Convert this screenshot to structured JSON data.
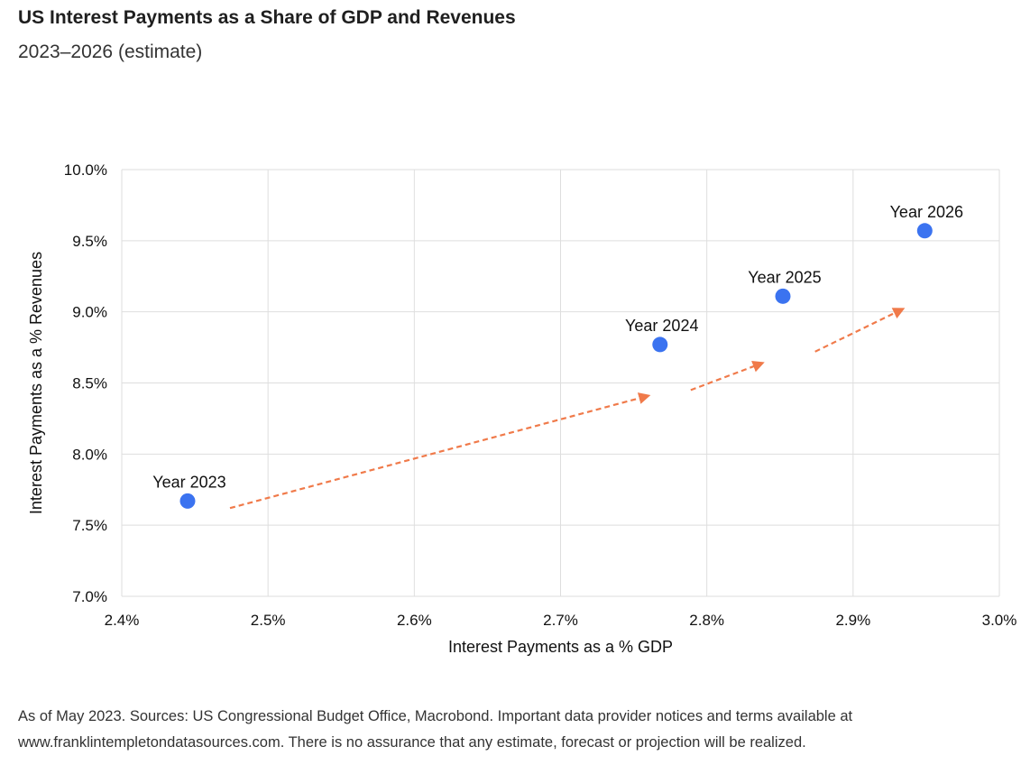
{
  "header": {
    "title": "US Interest Payments as a Share of GDP and Revenues",
    "subtitle": "2023–2026 (estimate)"
  },
  "footnote": {
    "line1": "As of May 2023. Sources: US Congressional Budget Office, Macrobond. Important data provider notices and terms available at",
    "line2": "www.franklintempletondatasources.com. There is no assurance that any estimate, forecast or projection will be realized."
  },
  "colors": {
    "point": "#3b73f0",
    "arrow": "#f07a4a",
    "grid": "#dedede"
  },
  "chart_data": {
    "type": "scatter",
    "title": "",
    "xlabel": "Interest Payments as a % GDP",
    "ylabel": "Interest Payments as a % Revenues",
    "xlim": [
      2.4,
      3.0
    ],
    "ylim": [
      7.0,
      10.0
    ],
    "x_ticks": [
      2.4,
      2.5,
      2.6,
      2.7,
      2.8,
      2.9,
      3.0
    ],
    "y_ticks": [
      7.0,
      7.5,
      8.0,
      8.5,
      9.0,
      9.5,
      10.0
    ],
    "x_tick_labels": [
      "2.4%",
      "2.5%",
      "2.6%",
      "2.7%",
      "2.8%",
      "2.9%",
      "3.0%"
    ],
    "y_tick_labels": [
      "7.0%",
      "7.5%",
      "8.0%",
      "8.5%",
      "9.0%",
      "9.5%",
      "10.0%"
    ],
    "grid": true,
    "legend": "none",
    "points": [
      {
        "label": "Year 2023",
        "x": 2.445,
        "y": 7.67
      },
      {
        "label": "Year 2024",
        "x": 2.768,
        "y": 8.77
      },
      {
        "label": "Year 2025",
        "x": 2.852,
        "y": 9.11
      },
      {
        "label": "Year 2026",
        "x": 2.949,
        "y": 9.57
      }
    ],
    "annotations": [
      {
        "type": "dashed-arrow",
        "from": [
          2.474,
          7.62
        ],
        "to": [
          2.76,
          8.41
        ]
      },
      {
        "type": "dashed-arrow",
        "from": [
          2.789,
          8.45
        ],
        "to": [
          2.838,
          8.64
        ]
      },
      {
        "type": "dashed-arrow",
        "from": [
          2.874,
          8.72
        ],
        "to": [
          2.934,
          9.02
        ]
      }
    ]
  }
}
